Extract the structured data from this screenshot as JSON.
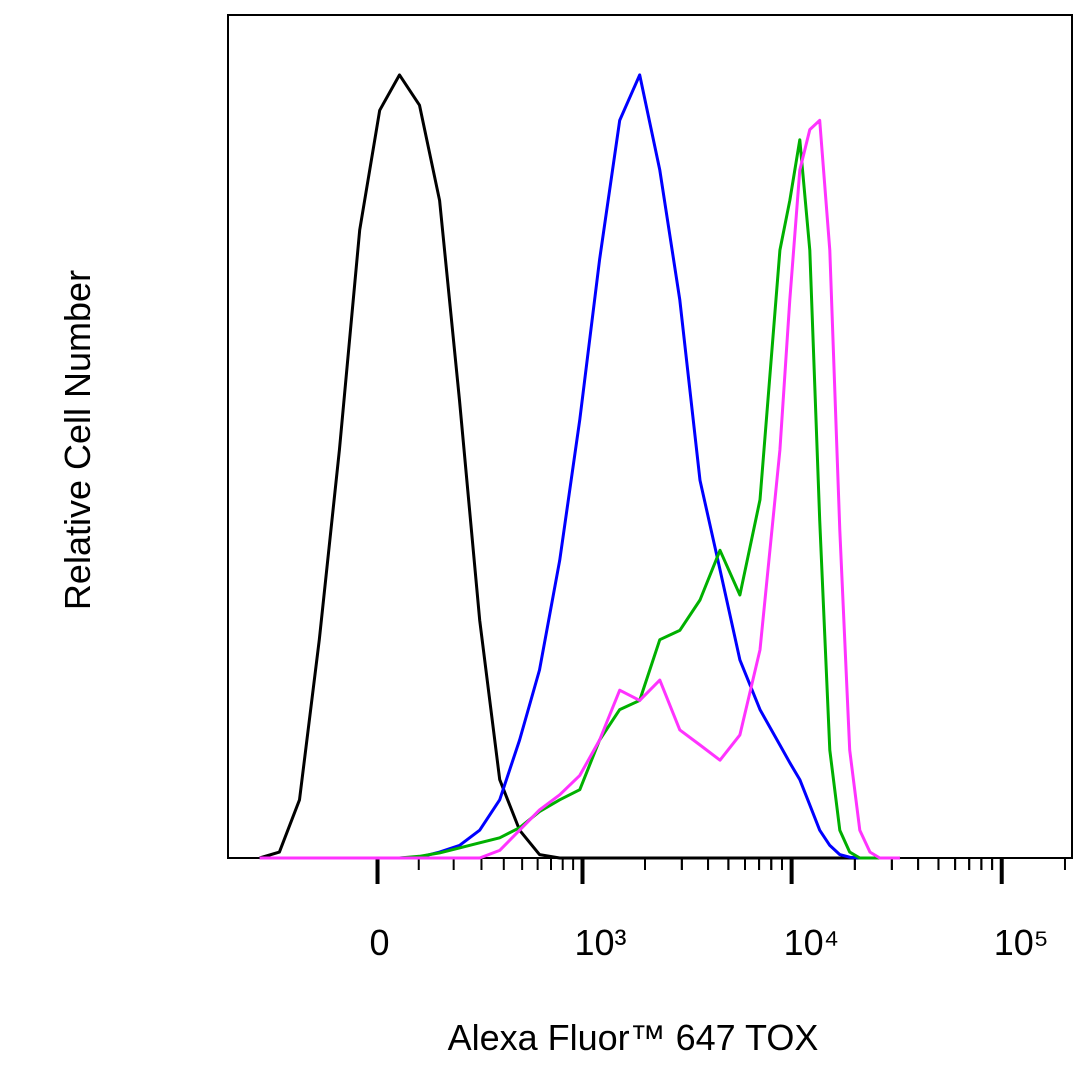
{
  "chart_data": {
    "type": "line",
    "xlabel": "Alexa Fluor™ 647 TOX",
    "ylabel": "Relative Cell Number",
    "xscale": "biexponential",
    "xlim": [
      -530,
      216000
    ],
    "ylim": [
      0,
      100
    ],
    "xticks": [
      0,
      {
        "value": 1000,
        "label": "10³"
      },
      {
        "value": 10000,
        "label": "10⁴"
      },
      {
        "value": 100000,
        "label": "10⁵"
      }
    ],
    "x": [
      -360,
      -277,
      -206,
      -146,
      -92,
      -42,
      5,
      52,
      102,
      157,
      219,
      293,
      380,
      485,
      613,
      773,
      970,
      1210,
      1513,
      1887,
      2354,
      2932,
      3660,
      4560,
      5670,
      7070,
      8800,
      9800,
      10940,
      12200,
      13610,
      15200,
      16960,
      18900,
      21120,
      23600,
      26300,
      32760
    ],
    "series": [
      {
        "color": "#000000",
        "values": [
          0,
          0.7,
          6.9,
          25.9,
          48.4,
          74.5,
          88.7,
          92.9,
          89.3,
          78,
          54.3,
          28.2,
          9.3,
          3.3,
          0.4,
          0,
          0,
          0,
          0,
          0,
          0,
          0,
          0,
          0,
          0,
          0,
          0,
          0,
          0,
          0,
          0,
          0,
          0,
          0,
          0,
          0,
          0,
          0
        ]
      },
      {
        "color": "#0000ff",
        "values": [
          0,
          0,
          0,
          0,
          0,
          0,
          0,
          0,
          0.1,
          0.7,
          1.5,
          3.3,
          6.9,
          14,
          22.3,
          35.3,
          52,
          71,
          87.5,
          92.9,
          81.6,
          66.2,
          44.8,
          34.2,
          23.5,
          17.6,
          13.4,
          11.3,
          9.3,
          6.3,
          3.3,
          1.5,
          0.4,
          0.1,
          0,
          0,
          0,
          0
        ]
      },
      {
        "color": "#00b000",
        "values": [
          0,
          0,
          0,
          0,
          0,
          0,
          0,
          0,
          0.2,
          0.6,
          1.2,
          1.8,
          2.4,
          3.6,
          5.5,
          6.9,
          8.1,
          14,
          17.6,
          18.7,
          25.9,
          27,
          30.6,
          36.5,
          31.2,
          42.5,
          72.1,
          78,
          85.2,
          72.1,
          40.1,
          12.8,
          3.3,
          0.7,
          0,
          0,
          0,
          0
        ]
      },
      {
        "color": "#ff33ff",
        "values": [
          0,
          0,
          0,
          0,
          0,
          0,
          0,
          0,
          0,
          0,
          0,
          0,
          0.9,
          3.3,
          5.7,
          7.5,
          9.8,
          14,
          19.9,
          18.7,
          21.1,
          15.2,
          13.4,
          11.6,
          14.6,
          24.7,
          48.4,
          66.2,
          81.6,
          86.4,
          87.5,
          72.1,
          38.9,
          12.8,
          3.3,
          0.7,
          0,
          0
        ]
      }
    ]
  }
}
